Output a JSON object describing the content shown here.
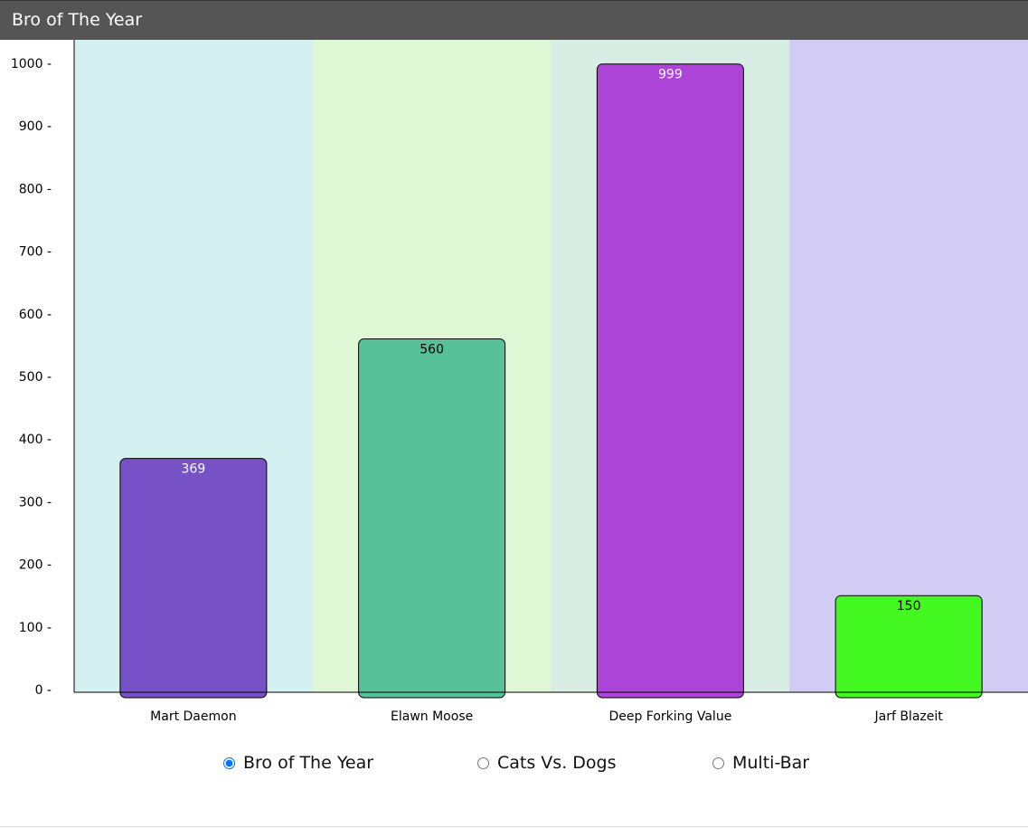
{
  "window": {
    "title": "Bro of The Year"
  },
  "chart_data": {
    "type": "bar",
    "categories": [
      "Mart Daemon",
      "Elawn Moose",
      "Deep Forking Value",
      "Jarf Blazeit"
    ],
    "values": [
      369,
      560,
      999,
      150
    ],
    "value_labels": [
      "369",
      "560",
      "999",
      "150"
    ],
    "bar_colors": [
      "#7752c7",
      "#56c198",
      "#ad44d8",
      "#44f921"
    ],
    "label_colors": [
      "#ffffff",
      "#000000",
      "#ffffff",
      "#000000"
    ],
    "band_colors": [
      "#d4f0f1",
      "#def8d6",
      "#d8ede4",
      "#d2cbf4"
    ],
    "ylim": [
      0,
      1000
    ],
    "yticks": [
      0,
      100,
      200,
      300,
      400,
      500,
      600,
      700,
      800,
      900,
      1000
    ],
    "ytick_labels": [
      "0 -",
      "100 -",
      "200 -",
      "300 -",
      "400 -",
      "500 -",
      "600 -",
      "700 -",
      "800 -",
      "900 -",
      "1000 -"
    ],
    "title": "",
    "xlabel": "",
    "ylabel": "",
    "grid": false,
    "legend": "none"
  },
  "controls": {
    "options": [
      {
        "label": "Bro of The Year",
        "checked": true
      },
      {
        "label": "Cats Vs. Dogs",
        "checked": false
      },
      {
        "label": "Multi-Bar",
        "checked": false
      }
    ]
  }
}
